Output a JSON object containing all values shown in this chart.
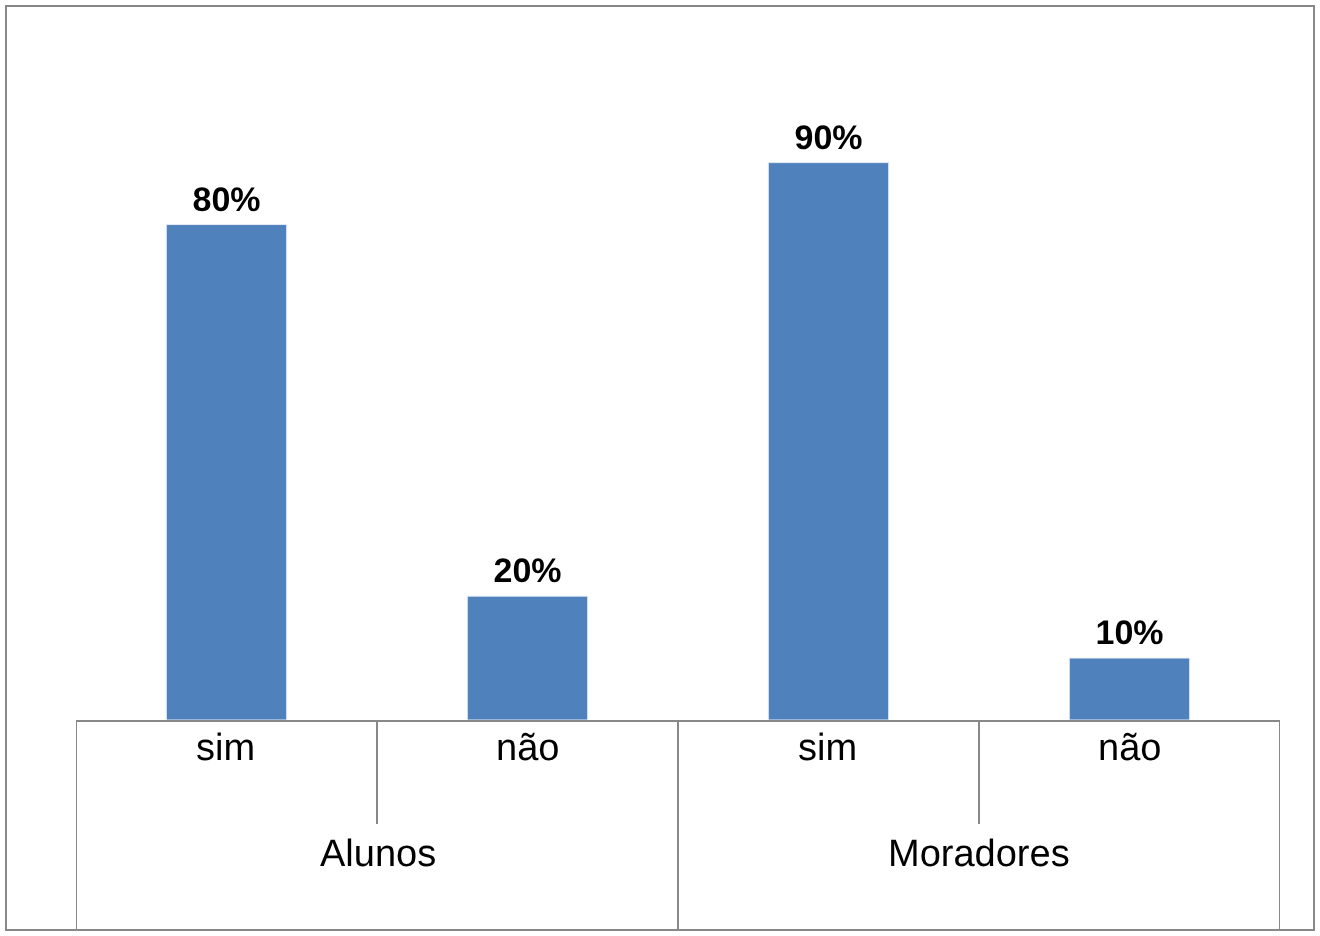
{
  "chart_data": {
    "type": "bar",
    "categories": [
      "sim",
      "não",
      "sim",
      "não"
    ],
    "values": [
      80,
      20,
      90,
      10
    ],
    "value_labels": [
      "80%",
      "20%",
      "90%",
      "10%"
    ],
    "color": "#4f81bd",
    "legend": false,
    "annotations": [
      "Alunos",
      "Moradores"
    ]
  }
}
